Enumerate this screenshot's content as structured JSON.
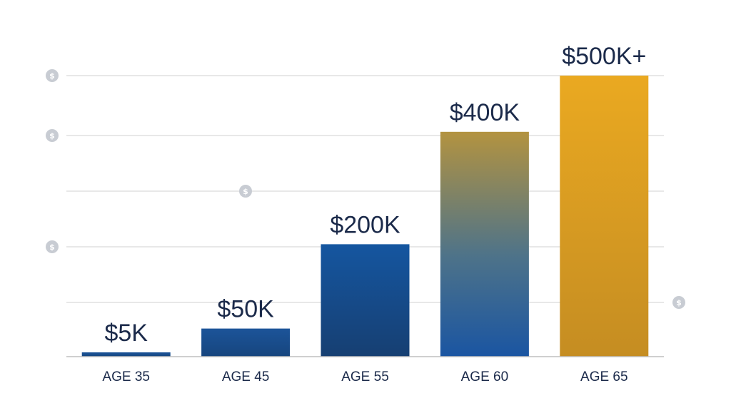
{
  "chart_data": {
    "type": "bar",
    "categories": [
      "AGE 35",
      "AGE 45",
      "AGE 55",
      "AGE 60",
      "AGE 65"
    ],
    "values": [
      5000,
      50000,
      200000,
      400000,
      500000
    ],
    "data_labels": [
      "$5K",
      "$50K",
      "$200K",
      "$400K",
      "$500K+"
    ],
    "ylim": [
      0,
      500000
    ],
    "grid": true,
    "colors": {
      "bars": [
        "#1a4f95",
        "#1a4f95",
        "#154f93",
        "#1a55a0",
        "#e3a322"
      ],
      "gradient_bar_top": "#b0913f",
      "gridline": "#d9d9d9",
      "axis": "#bfbfbf",
      "text": "#1b2a4a",
      "coin_icon": "#c8ccd3"
    },
    "icons": [
      "dollar-coin-icon"
    ]
  }
}
